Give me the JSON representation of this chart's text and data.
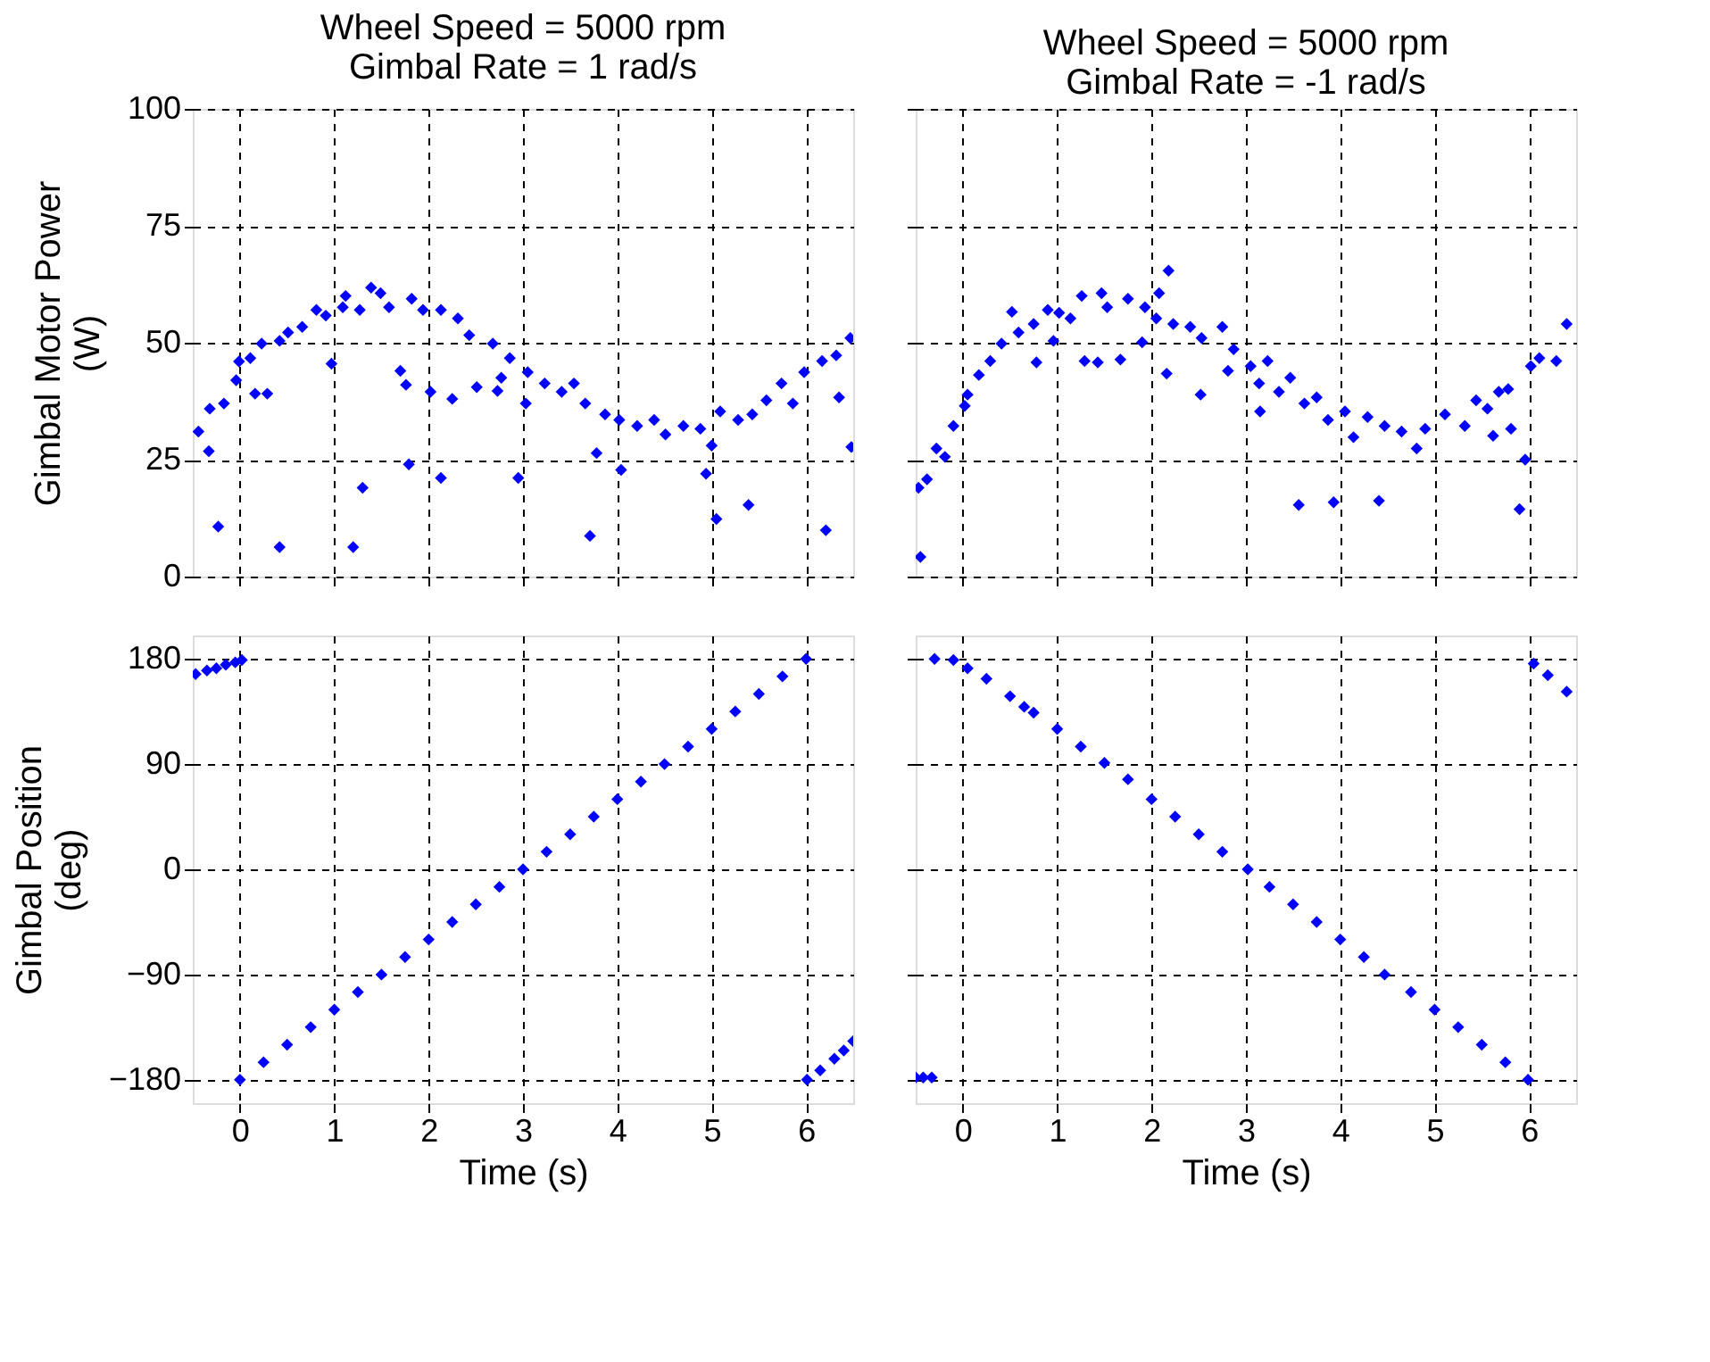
{
  "chart_data": [
    {
      "type": "scatter",
      "title": "Wheel Speed = 5000 rpm\nGimbal Rate = 1 rad/s",
      "ylabel": "Gimbal Motor Power\n(W)",
      "xlim": [
        -0.5,
        6.5
      ],
      "xticks": [
        0,
        1,
        2,
        3,
        4,
        5,
        6
      ],
      "ylim": [
        0,
        100
      ],
      "yticks": [
        0,
        25,
        50,
        75,
        100
      ],
      "grid": true,
      "marker": "diamond",
      "tick_labels": "y",
      "series": [
        {
          "color": "#0000ff",
          "x": [
            -0.44,
            -0.32,
            -0.17,
            -0.04,
            -0.01,
            0.11,
            0.23,
            0.42,
            0.51,
            0.66,
            0.81,
            0.91,
            1.12,
            1.09,
            1.27,
            1.39,
            1.49,
            1.58,
            1.82,
            1.94,
            2.13,
            2.31,
            2.43,
            2.68,
            2.86,
            3.05,
            3.23,
            3.41,
            3.54,
            3.66,
            3.87,
            4.02,
            4.21,
            4.39,
            4.51,
            4.7,
            4.88,
            5.0,
            5.09,
            5.28,
            5.43,
            5.58,
            5.74,
            5.86,
            5.98,
            6.17,
            6.32,
            6.47,
            -0.33,
            -0.23,
            0.16,
            0.29,
            0.42,
            0.97,
            1.2,
            1.3,
            1.7,
            1.76,
            1.79,
            2.02,
            2.13,
            2.25,
            2.51,
            2.73,
            2.77,
            2.95,
            3.03,
            3.71,
            3.78,
            4.04,
            4.94,
            5.05,
            5.39,
            6.21,
            6.35,
            6.48
          ],
          "values": [
            31,
            35.9,
            37,
            42,
            46,
            46.7,
            49.8,
            50.4,
            52.2,
            53.4,
            57,
            55.8,
            60,
            57.6,
            57,
            61.8,
            60.6,
            57.6,
            59.4,
            57,
            57,
            55.2,
            51.6,
            49.8,
            46.7,
            43.7,
            41.3,
            39.5,
            41.3,
            37,
            34.7,
            33.5,
            32.2,
            33.5,
            30.4,
            32.2,
            31.6,
            28,
            35.3,
            33.5,
            34.7,
            37.7,
            41.3,
            37,
            43.7,
            46.1,
            47.3,
            51,
            26.8,
            10.7,
            39.1,
            39.1,
            6.3,
            45.5,
            6.3,
            19,
            44,
            41,
            24,
            39.5,
            21.1,
            38,
            40.5,
            39.7,
            42.5,
            21.1,
            37,
            8.7,
            26.4,
            22.8,
            22,
            12.3,
            15.3,
            9.9,
            38.3,
            27.7
          ]
        }
      ]
    },
    {
      "type": "scatter",
      "title": "Wheel Speed = 5000 rpm\nGimbal Rate = -1 rad/s",
      "xlim": [
        -0.5,
        6.5
      ],
      "xticks": [
        0,
        1,
        2,
        3,
        4,
        5,
        6
      ],
      "ylim": [
        0,
        100
      ],
      "yticks": [
        0,
        25,
        50,
        75,
        100
      ],
      "grid": true,
      "marker": "diamond",
      "tick_labels": false,
      "series": [
        {
          "color": "#0000ff",
          "x": [
            -0.47,
            -0.38,
            -0.28,
            -0.19,
            -0.1,
            0.02,
            0.05,
            0.17,
            0.29,
            0.41,
            0.52,
            0.59,
            0.75,
            0.9,
            1.02,
            1.14,
            1.26,
            1.47,
            1.53,
            1.75,
            1.93,
            2.08,
            2.18,
            2.05,
            2.23,
            2.41,
            2.53,
            2.75,
            2.87,
            3.05,
            3.23,
            3.14,
            3.35,
            3.47,
            3.62,
            3.75,
            3.87,
            4.05,
            4.14,
            4.29,
            4.47,
            4.65,
            4.81,
            4.9,
            5.11,
            5.32,
            5.44,
            5.56,
            5.68,
            5.78,
            6.02,
            6.11,
            6.29,
            6.4,
            -0.45,
            0.78,
            0.96,
            1.29,
            1.43,
            1.67,
            1.9,
            2.16,
            2.52,
            2.81,
            3.15,
            3.56,
            3.93,
            4.41,
            5.62,
            5.81,
            5.96,
            5.9
          ],
          "values": [
            19,
            20.8,
            27.4,
            25.6,
            32.2,
            36.5,
            38.9,
            43.1,
            46.1,
            49.8,
            56.6,
            52.2,
            54,
            57,
            56.4,
            55.2,
            60,
            60.6,
            57.6,
            59.4,
            57.6,
            60.6,
            65.4,
            55.2,
            54,
            53.4,
            51,
            53.4,
            48.6,
            45,
            46.1,
            41.3,
            39.5,
            42.5,
            37,
            38.3,
            33.5,
            35.3,
            29.8,
            34.1,
            32.2,
            31,
            27.4,
            31.6,
            34.7,
            32.2,
            37.7,
            35.9,
            39.5,
            40.1,
            45,
            46.7,
            46.1,
            54,
            4.2,
            45.8,
            50.4,
            46.1,
            45.8,
            46.4,
            50.1,
            43.4,
            38.9,
            44,
            35.3,
            15.3,
            15.9,
            16.2,
            30.1,
            31.6,
            25,
            14.4
          ]
        }
      ]
    },
    {
      "type": "scatter",
      "xlabel": "Time (s)",
      "ylabel": "Gimbal Position\n(deg)",
      "xlim": [
        -0.5,
        6.5
      ],
      "xticks": [
        0,
        1,
        2,
        3,
        4,
        5,
        6
      ],
      "ylim": [
        -200,
        200
      ],
      "yticks": [
        -180,
        -90,
        0,
        90,
        180
      ],
      "grid": true,
      "marker": "diamond",
      "series": [
        {
          "color": "#0000ff",
          "x": [
            -0.47,
            -0.35,
            -0.25,
            -0.15,
            -0.05,
            0.02,
            0.0,
            0.25,
            0.5,
            0.75,
            1.0,
            1.25,
            1.5,
            1.75,
            2.0,
            2.25,
            2.5,
            2.75,
            3.0,
            3.25,
            3.5,
            3.75,
            4.0,
            4.25,
            4.5,
            4.75,
            5.0,
            5.25,
            5.5,
            5.75,
            6.0,
            6.01,
            6.15,
            6.3,
            6.4,
            6.5
          ],
          "values": [
            167,
            170,
            172,
            175,
            177,
            179,
            -180,
            -165,
            -150,
            -135,
            -120,
            -105,
            -90,
            -75,
            -60,
            -45,
            -30,
            -15,
            0,
            15,
            30,
            45,
            60,
            75,
            90,
            105,
            120,
            135,
            150,
            165,
            180,
            -180,
            -172,
            -162,
            -155,
            -147
          ]
        }
      ]
    },
    {
      "type": "scatter",
      "xlabel": "Time (s)",
      "xlim": [
        -0.5,
        6.5
      ],
      "xticks": [
        0,
        1,
        2,
        3,
        4,
        5,
        6
      ],
      "ylim": [
        -200,
        200
      ],
      "yticks": [
        -180,
        -90,
        0,
        90,
        180
      ],
      "grid": true,
      "marker": "diamond",
      "tick_labels": "x",
      "series": [
        {
          "color": "#0000ff",
          "x": [
            -0.5,
            -0.42,
            -0.33,
            -0.3,
            -0.1,
            0.05,
            0.25,
            0.5,
            0.65,
            0.75,
            1.0,
            1.25,
            1.5,
            1.75,
            2.0,
            2.25,
            2.5,
            2.75,
            3.02,
            3.25,
            3.5,
            3.75,
            4.0,
            4.25,
            4.47,
            4.75,
            5.0,
            5.25,
            5.5,
            5.75,
            5.99,
            6.05,
            6.2,
            6.4
          ],
          "values": [
            -178,
            -178,
            -178,
            180,
            179,
            172,
            163,
            148,
            139,
            134,
            120,
            105,
            91,
            77,
            60,
            45,
            30,
            15,
            0,
            -15,
            -30,
            -45,
            -60,
            -75,
            -90,
            -105,
            -120,
            -135,
            -150,
            -165,
            -180,
            176,
            166,
            152
          ]
        }
      ]
    }
  ]
}
